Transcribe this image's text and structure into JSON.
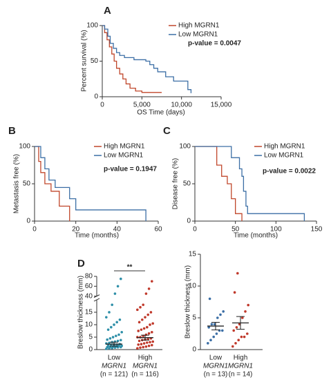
{
  "chart_data": [
    {
      "type": "line",
      "step": true,
      "label": "A",
      "xlabel": "OS Time (days)",
      "ylabel": "Percent survival (%)",
      "xlim": [
        0,
        15000
      ],
      "xticks": [
        0,
        {
          "value": 5000,
          "label": "5,000"
        },
        {
          "value": 10000,
          "label": "10,000"
        },
        {
          "value": 15000,
          "label": "15,000"
        }
      ],
      "ylim": [
        0,
        100
      ],
      "yticks": [
        0,
        50,
        100
      ],
      "annotation": "p-value = 0.0047",
      "series": [
        {
          "name": "High MGRN1",
          "color": "#c0462a",
          "x": [
            0,
            300,
            600,
            900,
            1200,
            1500,
            1800,
            2200,
            2600,
            3000,
            3500,
            4200,
            5000,
            7500
          ],
          "values": [
            100,
            90,
            80,
            70,
            60,
            50,
            40,
            32,
            25,
            18,
            12,
            8,
            6,
            6
          ]
        },
        {
          "name": "Low MGRN1",
          "color": "#3b6ea5",
          "x": [
            0,
            300,
            700,
            1000,
            1400,
            1800,
            2200,
            2800,
            4000,
            5500,
            6000,
            6500,
            7000,
            8000,
            9000,
            10500,
            10800,
            11200
          ],
          "values": [
            100,
            95,
            85,
            75,
            68,
            62,
            58,
            55,
            52,
            50,
            45,
            40,
            35,
            28,
            22,
            22,
            10,
            5
          ]
        }
      ]
    },
    {
      "type": "line",
      "step": true,
      "label": "B",
      "xlabel": "Time (months)",
      "ylabel": "Metastasis free (%)",
      "xlim": [
        0,
        60
      ],
      "xticks": [
        0,
        20,
        40,
        60
      ],
      "ylim": [
        0,
        100
      ],
      "yticks": [
        0,
        50,
        100
      ],
      "annotation": "p-value = 0.1947",
      "series": [
        {
          "name": "High MGRN1",
          "color": "#c0462a",
          "x": [
            0,
            2,
            3,
            5,
            8,
            12,
            17
          ],
          "values": [
            100,
            80,
            65,
            50,
            40,
            20,
            0
          ]
        },
        {
          "name": "Low MGRN1",
          "color": "#3b6ea5",
          "x": [
            0,
            3,
            5,
            7,
            10,
            17,
            20,
            54
          ],
          "values": [
            100,
            85,
            70,
            55,
            45,
            30,
            15,
            0
          ]
        }
      ]
    },
    {
      "type": "line",
      "step": true,
      "label": "C",
      "xlabel": "Time (months)",
      "ylabel": "Disease free (%)",
      "xlim": [
        0,
        150
      ],
      "xticks": [
        0,
        50,
        100,
        150
      ],
      "ylim": [
        0,
        100
      ],
      "yticks": [
        0,
        50,
        100
      ],
      "annotation": "p-value = 0.0022",
      "series": [
        {
          "name": "High MGRN1",
          "color": "#c0462a",
          "x": [
            0,
            27,
            33,
            40,
            45,
            50,
            58
          ],
          "values": [
            100,
            75,
            60,
            50,
            30,
            10,
            0
          ]
        },
        {
          "name": "Low MGRN1",
          "color": "#3b6ea5",
          "x": [
            0,
            45,
            55,
            58,
            60,
            63,
            65,
            135
          ],
          "values": [
            100,
            85,
            70,
            60,
            40,
            20,
            10,
            0
          ]
        }
      ]
    },
    {
      "type": "strip",
      "label": "D",
      "ylabel": "Breslow thickness (mm)",
      "ylim": [
        0,
        80
      ],
      "ybreak": [
        20,
        40
      ],
      "yticks": [
        0,
        5,
        10,
        15,
        40,
        60,
        80
      ],
      "categories": [
        "Low",
        "High"
      ],
      "gene": "MGRN1",
      "n_labels": [
        "(n = 121)",
        "(n = 116)"
      ],
      "annotation": "**",
      "series": [
        {
          "color": "#2e8fa8",
          "mean": 2.2,
          "sem": 0.8,
          "values": [
            0.3,
            0.5,
            0.6,
            0.8,
            0.9,
            1,
            1,
            1.1,
            1.2,
            1.3,
            1.5,
            1.5,
            1.6,
            1.8,
            2,
            2,
            2.2,
            2.5,
            2.7,
            3,
            3.2,
            3.5,
            3.8,
            4,
            4.5,
            5,
            5.5,
            6,
            7,
            8,
            9,
            10,
            11,
            12,
            13,
            15,
            18,
            45,
            60,
            75
          ]
        },
        {
          "color": "#c0392b",
          "mean": 4.8,
          "sem": 1,
          "values": [
            0.5,
            0.8,
            1,
            1.2,
            1.5,
            1.8,
            2,
            2.2,
            2.5,
            2.8,
            3,
            3.2,
            3.5,
            3.8,
            4,
            4.2,
            4.5,
            5,
            5,
            5.5,
            6,
            6.5,
            7,
            7.5,
            8,
            8.5,
            9,
            10,
            10.5,
            11,
            12,
            13,
            14,
            15,
            16,
            17,
            18,
            45,
            55,
            70
          ]
        }
      ]
    },
    {
      "type": "strip",
      "ylabel": "Breslow thickness (mm)",
      "ylim": [
        0,
        15
      ],
      "yticks": [
        0,
        5,
        10,
        15
      ],
      "categories": [
        "Low",
        "High"
      ],
      "gene": "MGRN1",
      "n_labels": [
        "(n = 13)",
        "(n = 14)"
      ],
      "series": [
        {
          "color": "#3b6ea5",
          "mean": 3.7,
          "sem": 0.6,
          "values": [
            1,
            1.5,
            2,
            2.5,
            3,
            3,
            3.5,
            4,
            4,
            5,
            5.5,
            6,
            8
          ]
        },
        {
          "color": "#c0392b",
          "mean": 4.2,
          "sem": 1,
          "values": [
            0.5,
            1,
            1.5,
            2,
            2,
            2.5,
            3,
            3.5,
            4,
            5,
            6,
            7,
            9,
            12
          ]
        }
      ]
    }
  ]
}
